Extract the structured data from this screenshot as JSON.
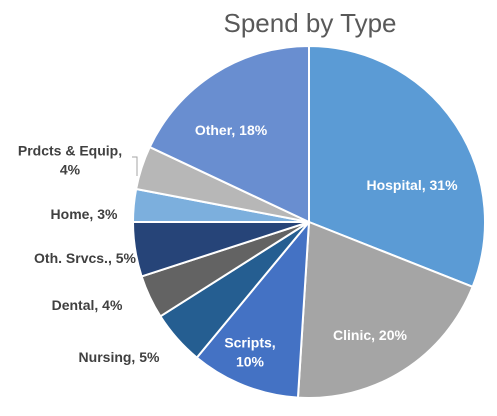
{
  "chart_data": {
    "type": "pie",
    "title": "Spend by Type",
    "categories": [
      "Hospital",
      "Clinic",
      "Scripts",
      "Nursing",
      "Dental",
      "Oth. Srvcs.",
      "Home",
      "Prdcts & Equip",
      "Other"
    ],
    "values": [
      31,
      20,
      10,
      5,
      4,
      5,
      3,
      4,
      18
    ],
    "unit": "%",
    "labels": [
      [
        "Hospital, 31%"
      ],
      [
        "Clinic, 20%"
      ],
      [
        "Scripts,",
        "10%"
      ],
      [
        "Nursing, 5%"
      ],
      [
        "Dental, 4%"
      ],
      [
        "Oth. Srvcs., 5%"
      ],
      [
        "Home, 3%"
      ],
      [
        "Prdcts & Equip,",
        "4%"
      ],
      [
        "Other, 18%"
      ]
    ],
    "label_placement": [
      "inside",
      "inside",
      "inside",
      "outside",
      "outside",
      "outside",
      "outside",
      "outside",
      "inside"
    ],
    "colors": [
      "#5b9bd5",
      "#a5a5a5",
      "#4472c4",
      "#255e91",
      "#636363",
      "#264478",
      "#7cafdd",
      "#b7b7b7",
      "#698ed0"
    ],
    "start_angle": "12 o'clock",
    "direction": "clockwise",
    "slice_border": "#ffffff",
    "legend": "none (category labels on slices)"
  }
}
